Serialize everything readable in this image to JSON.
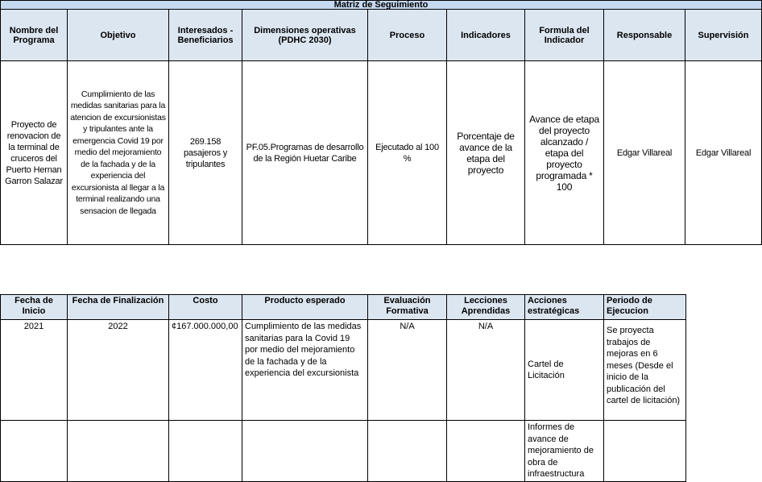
{
  "matrix": {
    "title": "Matriz de Seguimiento",
    "headers": {
      "nombre": "Nombre del Programa",
      "objetivo": "Objetivo",
      "interesados": "Interesados - Beneficiarios",
      "dimensiones": "Dimensiones operativas (PDHC 2030)",
      "proceso": "Proceso",
      "indicadores": "Indicadores",
      "formula": "Formula del Indicador",
      "responsable": "Responsable",
      "supervision": "Supervisión"
    },
    "row": {
      "nombre": "Proyecto de renovacion de la terminal de cruceros del Puerto Hernan Garron Salazar",
      "objetivo": "Cumplimiento de las medidas sanitarias para la atencion de excursionistas y tripulantes ante la emergencia Covid 19 por medio del mejoramiento de la fachada y de la experiencia del excursionista al llegar a la terminal realizando una sensacion de llegada",
      "interesados": "269.158 pasajeros y tripulantes",
      "dimensiones": "PF.05.Programas de desarrollo de la Región Huetar Caribe",
      "proceso": "Ejecutado al 100 %",
      "indicadores": "Porcentaje de avance de la etapa del proyecto",
      "formula": "Avance de etapa del proyecto alcanzado / etapa del proyecto programada * 100",
      "responsable": "Edgar Villareal",
      "supervision": "Edgar Villareal"
    }
  },
  "schedule": {
    "headers": {
      "inicio": "Fecha de Inicio",
      "finalizacion": "Fecha de Finalización",
      "costo": "Costo",
      "producto": "Producto esperado",
      "evaluacion": "Evaluación Formativa",
      "lecciones": "Lecciones Aprendidas",
      "acciones": "Acciones estratégicas",
      "periodo": "Periodo de Ejecucion"
    },
    "row1": {
      "inicio": "2021",
      "finalizacion": "2022",
      "costo": "¢167.000.000,00",
      "producto": "Cumplimiento de las medidas sanitarias para la Covid 19 por medio del mejoramiento de la fachada y de la experiencia del excursionista",
      "evaluacion": "N/A",
      "lecciones": "N/A",
      "acciones": "Cartel de Licitación",
      "periodo": "Se proyecta trabajos de mejoras en 6 meses (Desde el inicio de la publicación del cartel de licitación)"
    },
    "row2": {
      "acciones": "Informes de avance de mejoramiento de obra de infraestructura"
    }
  }
}
